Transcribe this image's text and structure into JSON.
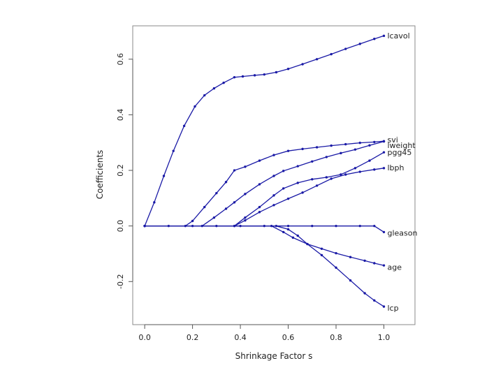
{
  "chart_data": {
    "type": "line",
    "title": "",
    "xlabel": "Shrinkage Factor s",
    "ylabel": "Coefficients",
    "xlim": [
      -0.05,
      1.13
    ],
    "ylim": [
      -0.355,
      0.72
    ],
    "xticks": [
      0.0,
      0.2,
      0.4,
      0.6,
      0.8,
      1.0
    ],
    "xtick_labels": [
      "0.0",
      "0.2",
      "0.4",
      "0.6",
      "0.8",
      "1.0"
    ],
    "yticks": [
      -0.2,
      0.0,
      0.2,
      0.4,
      0.6
    ],
    "ytick_labels": [
      "-0.2",
      "0.0",
      "0.2",
      "0.4",
      "0.6"
    ],
    "grid": false,
    "legend": "none (series labelled at right end of lines)",
    "line_color": "#1a1aa6",
    "series": [
      {
        "name": "lcavol",
        "label_y": 0.685,
        "points": [
          [
            0,
            0
          ],
          [
            0.04,
            0.085
          ],
          [
            0.08,
            0.18
          ],
          [
            0.12,
            0.27
          ],
          [
            0.165,
            0.36
          ],
          [
            0.21,
            0.43
          ],
          [
            0.25,
            0.47
          ],
          [
            0.29,
            0.495
          ],
          [
            0.33,
            0.515
          ],
          [
            0.375,
            0.535
          ],
          [
            0.41,
            0.538
          ],
          [
            0.46,
            0.542
          ],
          [
            0.5,
            0.545
          ],
          [
            0.55,
            0.553
          ],
          [
            0.6,
            0.565
          ],
          [
            0.66,
            0.582
          ],
          [
            0.72,
            0.6
          ],
          [
            0.78,
            0.618
          ],
          [
            0.84,
            0.637
          ],
          [
            0.9,
            0.655
          ],
          [
            0.96,
            0.673
          ],
          [
            1.0,
            0.684
          ]
        ]
      },
      {
        "name": "svi",
        "label_y": 0.31,
        "points": [
          [
            0,
            0
          ],
          [
            0.17,
            0
          ],
          [
            0.2,
            0.018
          ],
          [
            0.25,
            0.068
          ],
          [
            0.3,
            0.118
          ],
          [
            0.34,
            0.158
          ],
          [
            0.375,
            0.2
          ],
          [
            0.42,
            0.213
          ],
          [
            0.48,
            0.235
          ],
          [
            0.54,
            0.255
          ],
          [
            0.6,
            0.27
          ],
          [
            0.66,
            0.277
          ],
          [
            0.72,
            0.283
          ],
          [
            0.78,
            0.289
          ],
          [
            0.84,
            0.294
          ],
          [
            0.9,
            0.299
          ],
          [
            0.96,
            0.302
          ],
          [
            1.0,
            0.305
          ]
        ]
      },
      {
        "name": "lweight",
        "label_y": 0.29,
        "points": [
          [
            0,
            0
          ],
          [
            0.24,
            0
          ],
          [
            0.29,
            0.03
          ],
          [
            0.34,
            0.062
          ],
          [
            0.375,
            0.085
          ],
          [
            0.42,
            0.115
          ],
          [
            0.48,
            0.15
          ],
          [
            0.54,
            0.18
          ],
          [
            0.58,
            0.198
          ],
          [
            0.64,
            0.215
          ],
          [
            0.7,
            0.232
          ],
          [
            0.76,
            0.248
          ],
          [
            0.82,
            0.262
          ],
          [
            0.88,
            0.275
          ],
          [
            0.94,
            0.29
          ],
          [
            1.0,
            0.304
          ]
        ]
      },
      {
        "name": "pgg45",
        "label_y": 0.265,
        "points": [
          [
            0,
            0
          ],
          [
            0.375,
            0
          ],
          [
            0.42,
            0.03
          ],
          [
            0.48,
            0.068
          ],
          [
            0.54,
            0.11
          ],
          [
            0.58,
            0.135
          ],
          [
            0.64,
            0.155
          ],
          [
            0.7,
            0.168
          ],
          [
            0.76,
            0.175
          ],
          [
            0.82,
            0.185
          ],
          [
            0.88,
            0.208
          ],
          [
            0.94,
            0.235
          ],
          [
            1.0,
            0.265
          ]
        ]
      },
      {
        "name": "lbph",
        "label_y": 0.21,
        "points": [
          [
            0,
            0
          ],
          [
            0.375,
            0
          ],
          [
            0.42,
            0.02
          ],
          [
            0.48,
            0.05
          ],
          [
            0.54,
            0.075
          ],
          [
            0.6,
            0.098
          ],
          [
            0.66,
            0.12
          ],
          [
            0.72,
            0.145
          ],
          [
            0.78,
            0.17
          ],
          [
            0.84,
            0.185
          ],
          [
            0.9,
            0.195
          ],
          [
            0.96,
            0.203
          ],
          [
            1.0,
            0.208
          ]
        ]
      },
      {
        "name": "gleason",
        "label_y": -0.025,
        "points": [
          [
            0,
            0
          ],
          [
            0.1,
            0
          ],
          [
            0.2,
            0
          ],
          [
            0.3,
            0
          ],
          [
            0.4,
            0
          ],
          [
            0.5,
            0
          ],
          [
            0.6,
            0
          ],
          [
            0.7,
            0
          ],
          [
            0.8,
            0
          ],
          [
            0.9,
            0
          ],
          [
            0.96,
            0
          ],
          [
            1.0,
            -0.022
          ]
        ]
      },
      {
        "name": "age",
        "label_y": -0.148,
        "points": [
          [
            0,
            0
          ],
          [
            0.53,
            0
          ],
          [
            0.58,
            -0.022
          ],
          [
            0.62,
            -0.042
          ],
          [
            0.68,
            -0.065
          ],
          [
            0.74,
            -0.082
          ],
          [
            0.8,
            -0.098
          ],
          [
            0.86,
            -0.112
          ],
          [
            0.92,
            -0.125
          ],
          [
            0.96,
            -0.134
          ],
          [
            1.0,
            -0.142
          ]
        ]
      },
      {
        "name": "lcp",
        "label_y": -0.295,
        "points": [
          [
            0,
            0
          ],
          [
            0.55,
            0
          ],
          [
            0.6,
            -0.012
          ],
          [
            0.64,
            -0.035
          ],
          [
            0.68,
            -0.065
          ],
          [
            0.74,
            -0.105
          ],
          [
            0.8,
            -0.15
          ],
          [
            0.86,
            -0.196
          ],
          [
            0.92,
            -0.242
          ],
          [
            0.96,
            -0.268
          ],
          [
            1.0,
            -0.29
          ]
        ]
      }
    ]
  }
}
